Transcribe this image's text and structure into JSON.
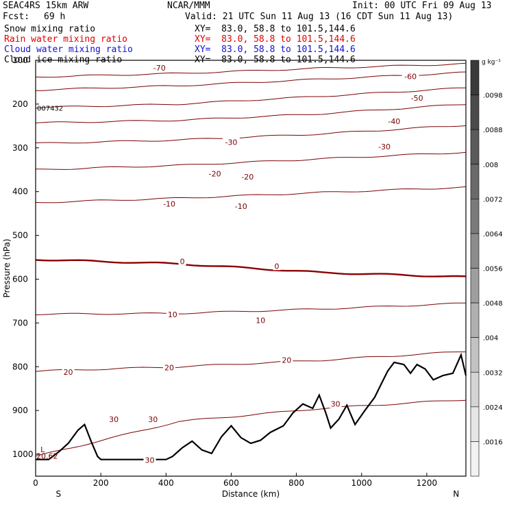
{
  "header": {
    "model": "SEAC4RS 15km ARW",
    "org": "NCAR/MMM",
    "init": "Init: 00 UTC Fri 09 Aug 13",
    "fcst_label": "Fcst:",
    "fcst_value": "69 h",
    "valid": "Valid: 21 UTC Sun 11 Aug 13 (16 CDT Sun 11 Aug 13)",
    "fields": [
      {
        "name": "Snow mixing ratio",
        "xy": "XY=  83.0, 58.8 to 101.5,144.6",
        "color": "#000000"
      },
      {
        "name": "Rain water mixing ratio",
        "xy": "XY=  83.0, 58.8 to 101.5,144.6",
        "color": "#e00000"
      },
      {
        "name": "Cloud water mixing ratio",
        "xy": "XY=  83.0, 58.8 to 101.5,144.6",
        "color": "#1010d0"
      },
      {
        "name": "Cloud ice mixing ratio",
        "xy": "XY=  83.0, 58.8 to 101.5,144.6",
        "color": "#000000"
      }
    ]
  },
  "chart_data": {
    "type": "line",
    "xlabel": "Distance (km)",
    "ylabel": "Pressure (hPa)",
    "xlim": [
      0,
      1320
    ],
    "ylim": [
      1050,
      100
    ],
    "x_ticks": [
      "0",
      "200",
      "400",
      "600",
      "800",
      "1000",
      "1200"
    ],
    "y_ticks": [
      "100",
      "200",
      "300",
      "400",
      "500",
      "600",
      "700",
      "800",
      "900",
      "1000"
    ],
    "x_tick_values": [
      0,
      200,
      400,
      600,
      800,
      1000,
      1200
    ],
    "y_tick_values": [
      100,
      200,
      300,
      400,
      500,
      600,
      700,
      800,
      900,
      1000
    ],
    "direction_left": "S",
    "direction_right": "N",
    "station_label": "007432",
    "low_marker": "L",
    "low_value": "20.62",
    "colorbar": {
      "unit": "g kg⁻¹",
      "labels": [
        ".0098",
        ".0088",
        ".008",
        ".0072",
        ".0064",
        ".0056",
        ".0048",
        ".004",
        ".0032",
        ".0024",
        ".0016"
      ],
      "grays": [
        "#3a3a3a",
        "#4a4a4a",
        "#5a5a5a",
        "#6a6a6a",
        "#7a7a7a",
        "#8c8c8c",
        "#9e9e9e",
        "#b0b0b0",
        "#c2c2c2",
        "#d4d4d4",
        "#e6e6e6",
        "#f2f2f2"
      ]
    },
    "contour_color": "#7a0000",
    "freezing_color": "#8a0000",
    "isotherms": [
      {
        "label": "-70",
        "p": [
          138,
          130,
          118,
          108
        ]
      },
      {
        "label": "-60",
        "p": [
          168,
          158,
          143,
          128
        ]
      },
      {
        "label": "-50",
        "p": [
          208,
          200,
          182,
          163
        ]
      },
      {
        "label": "-40",
        "p": [
          243,
          237,
          222,
          200
        ]
      },
      {
        "label": "-30",
        "p": [
          290,
          282,
          268,
          248
        ]
      },
      {
        "label": "-20",
        "p": [
          350,
          340,
          325,
          310
        ]
      },
      {
        "label": "-10",
        "p": [
          425,
          415,
          402,
          390
        ]
      },
      {
        "label": "0",
        "p": [
          555,
          565,
          585,
          595
        ]
      },
      {
        "label": "10",
        "p": [
          680,
          678,
          668,
          655
        ]
      },
      {
        "label": "20",
        "p": [
          810,
          800,
          785,
          765
        ]
      },
      {
        "label": "30",
        "p": [
          1005,
          925,
          895,
          875
        ]
      }
    ],
    "isotherm_labels": [
      {
        "text": "-70",
        "x": 380,
        "p": 117
      },
      {
        "text": "-60",
        "x": 1150,
        "p": 137
      },
      {
        "text": "-50",
        "x": 1170,
        "p": 186
      },
      {
        "text": "-40",
        "x": 1100,
        "p": 239
      },
      {
        "text": "-30",
        "x": 600,
        "p": 287
      },
      {
        "text": "-30",
        "x": 1070,
        "p": 297
      },
      {
        "text": "-20",
        "x": 550,
        "p": 359
      },
      {
        "text": "-20",
        "x": 650,
        "p": 366
      },
      {
        "text": "-10",
        "x": 410,
        "p": 428
      },
      {
        "text": "-10",
        "x": 630,
        "p": 433
      },
      {
        "text": "0",
        "x": 450,
        "p": 559
      },
      {
        "text": "0",
        "x": 740,
        "p": 570
      },
      {
        "text": "10",
        "x": 420,
        "p": 681
      },
      {
        "text": "10",
        "x": 690,
        "p": 694
      },
      {
        "text": "20",
        "x": 100,
        "p": 812
      },
      {
        "text": "20",
        "x": 410,
        "p": 802
      },
      {
        "text": "20",
        "x": 770,
        "p": 785
      },
      {
        "text": "30",
        "x": 240,
        "p": 920
      },
      {
        "text": "30",
        "x": 360,
        "p": 920
      },
      {
        "text": "30",
        "x": 920,
        "p": 885
      },
      {
        "text": "30",
        "x": 350,
        "p": 1013
      }
    ],
    "terrain": [
      [
        0,
        1012
      ],
      [
        40,
        1012
      ],
      [
        70,
        995
      ],
      [
        100,
        975
      ],
      [
        130,
        945
      ],
      [
        150,
        932
      ],
      [
        170,
        970
      ],
      [
        190,
        1005
      ],
      [
        200,
        1012
      ],
      [
        400,
        1012
      ],
      [
        420,
        1005
      ],
      [
        450,
        985
      ],
      [
        480,
        970
      ],
      [
        510,
        990
      ],
      [
        540,
        998
      ],
      [
        570,
        960
      ],
      [
        600,
        935
      ],
      [
        630,
        962
      ],
      [
        660,
        975
      ],
      [
        690,
        968
      ],
      [
        720,
        950
      ],
      [
        760,
        935
      ],
      [
        790,
        905
      ],
      [
        820,
        885
      ],
      [
        850,
        895
      ],
      [
        870,
        865
      ],
      [
        890,
        905
      ],
      [
        905,
        940
      ],
      [
        930,
        920
      ],
      [
        955,
        888
      ],
      [
        980,
        932
      ],
      [
        1010,
        900
      ],
      [
        1040,
        870
      ],
      [
        1060,
        840
      ],
      [
        1080,
        810
      ],
      [
        1100,
        790
      ],
      [
        1130,
        795
      ],
      [
        1150,
        815
      ],
      [
        1170,
        795
      ],
      [
        1195,
        805
      ],
      [
        1220,
        830
      ],
      [
        1250,
        820
      ],
      [
        1280,
        815
      ],
      [
        1305,
        773
      ],
      [
        1320,
        820
      ]
    ]
  }
}
